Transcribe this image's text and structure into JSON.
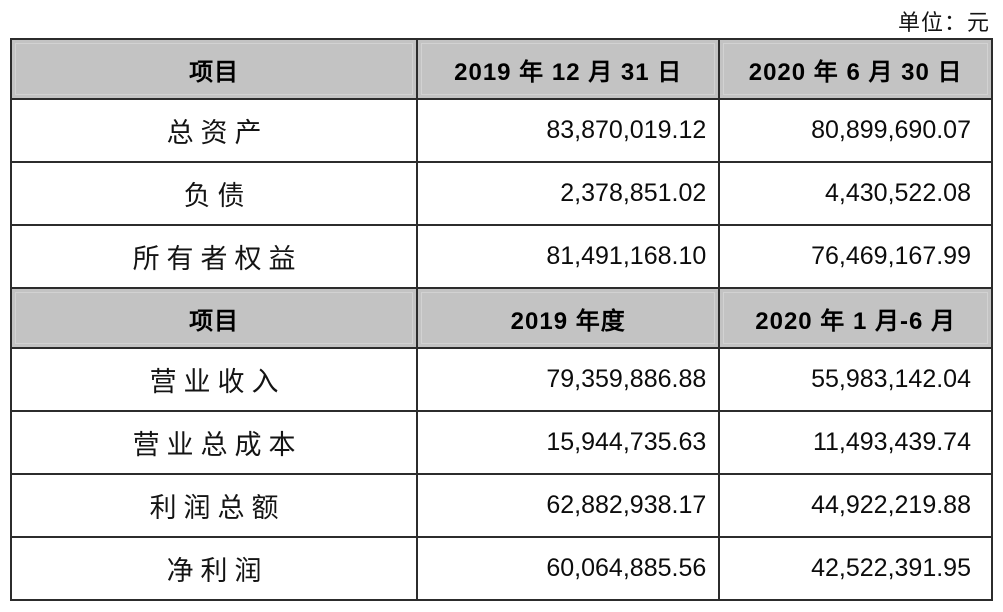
{
  "page": {
    "unit_label": "单位：元"
  },
  "table": {
    "sections": [
      {
        "header": {
          "item": "项目",
          "col1": "2019 年 12 月 31 日",
          "col2": "2020 年 6 月 30 日"
        },
        "rows": [
          {
            "label": "总资产",
            "v1": "83,870,019.12",
            "v2": "80,899,690.07"
          },
          {
            "label": "负债",
            "v1": "2,378,851.02",
            "v2": "4,430,522.08"
          },
          {
            "label": "所有者权益",
            "v1": "81,491,168.10",
            "v2": "76,469,167.99"
          }
        ]
      },
      {
        "header": {
          "item": "项目",
          "col1": "2019 年度",
          "col2": "2020 年 1 月-6 月"
        },
        "rows": [
          {
            "label": "营业收入",
            "v1": "79,359,886.88",
            "v2": "55,983,142.04"
          },
          {
            "label": "营业总成本",
            "v1": "15,944,735.63",
            "v2": "11,493,439.74"
          },
          {
            "label": "利润总额",
            "v1": "62,882,938.17",
            "v2": "44,922,219.88"
          },
          {
            "label": "净利润",
            "v1": "60,064,885.56",
            "v2": "42,522,391.95"
          }
        ]
      }
    ],
    "colors": {
      "header_bg": "#c3c3c3",
      "header_inset_line": "#d2d2d2",
      "grid_border": "#2c2c2c",
      "text": "#0c0c0c"
    }
  }
}
